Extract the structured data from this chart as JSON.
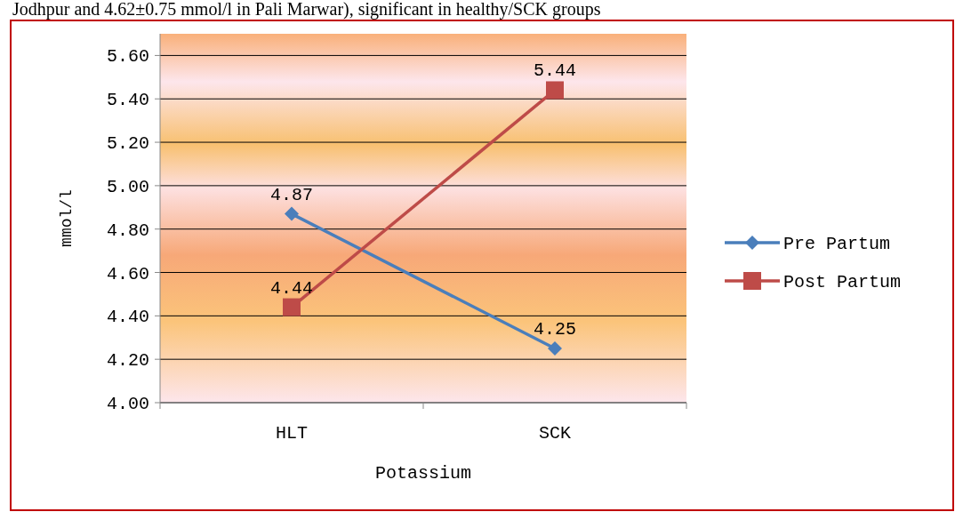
{
  "chart_data": {
    "type": "line",
    "xlabel": "Potassium",
    "ylabel": "mmol/l",
    "annotations": [
      "Jodhpur and 4.62±0.75 mmol/l in Pali Marwar), significant in healthy/SCK groups"
    ],
    "categories": [
      "HLT",
      "SCK"
    ],
    "series": [
      {
        "name": "Pre Partum",
        "color": "#4a7ebb",
        "values": [
          4.87,
          4.25
        ],
        "marker": "diamond"
      },
      {
        "name": "Post Partum",
        "color": "#be4b48",
        "values": [
          4.44,
          5.44
        ],
        "marker": "square"
      }
    ],
    "ylim": [
      4.0,
      5.7
    ],
    "yticks": [
      {
        "value": 4.0,
        "label": "4.00"
      },
      {
        "value": 4.2,
        "label": "4.20"
      },
      {
        "value": 4.4,
        "label": "4.40"
      },
      {
        "value": 4.6,
        "label": "4.60"
      },
      {
        "value": 4.8,
        "label": "4.80"
      },
      {
        "value": 5.0,
        "label": "5.00"
      },
      {
        "value": 5.2,
        "label": "5.20"
      },
      {
        "value": 5.4,
        "label": "5.40"
      },
      {
        "value": 5.6,
        "label": "5.60"
      }
    ],
    "grid": "y",
    "legend": "right",
    "data_labels": true,
    "line_style": "solid"
  }
}
